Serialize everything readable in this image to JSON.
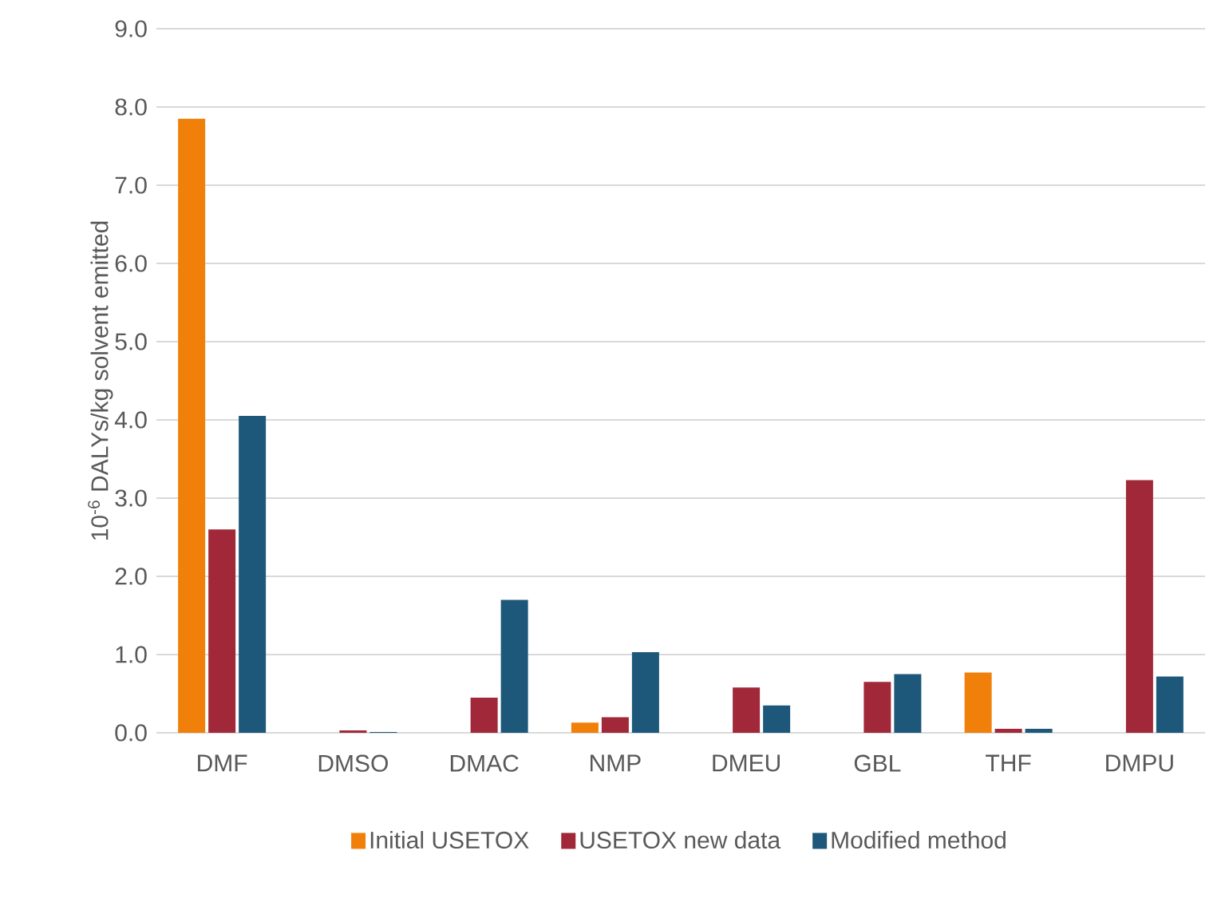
{
  "chart_data": {
    "type": "bar",
    "ylabel": "10$^{-6}$ DALYs/kg solvent emitted",
    "categories": [
      "DMF",
      "DMSO",
      "DMAC",
      "NMP",
      "DMEU",
      "GBL",
      "THF",
      "DMPU"
    ],
    "series": [
      {
        "name": "Initial USETOX",
        "color": "#f0800a",
        "values": [
          7.85,
          0,
          0,
          0.13,
          0,
          0,
          0.77,
          0
        ]
      },
      {
        "name": "USETOX new data",
        "color": "#a02838",
        "values": [
          2.6,
          0.03,
          0.45,
          0.2,
          0.58,
          0.65,
          0.05,
          3.23
        ]
      },
      {
        "name": "Modified method",
        "color": "#1d587a",
        "values": [
          4.05,
          0.01,
          1.7,
          1.03,
          0.35,
          0.75,
          0.05,
          0.72
        ]
      }
    ],
    "ylim": [
      0,
      9
    ],
    "yticks": [
      {
        "value": 0,
        "label": "0.0"
      },
      {
        "value": 1,
        "label": "1.0"
      },
      {
        "value": 2,
        "label": "2.0"
      },
      {
        "value": 3,
        "label": "3.0"
      },
      {
        "value": 4,
        "label": "4.0"
      },
      {
        "value": 5,
        "label": "5.0"
      },
      {
        "value": 6,
        "label": "6.0"
      },
      {
        "value": 7,
        "label": "7.0"
      },
      {
        "value": 8,
        "label": "8.0"
      },
      {
        "value": 9,
        "label": "9.0"
      }
    ],
    "grid": "y",
    "legend": "bottom"
  }
}
